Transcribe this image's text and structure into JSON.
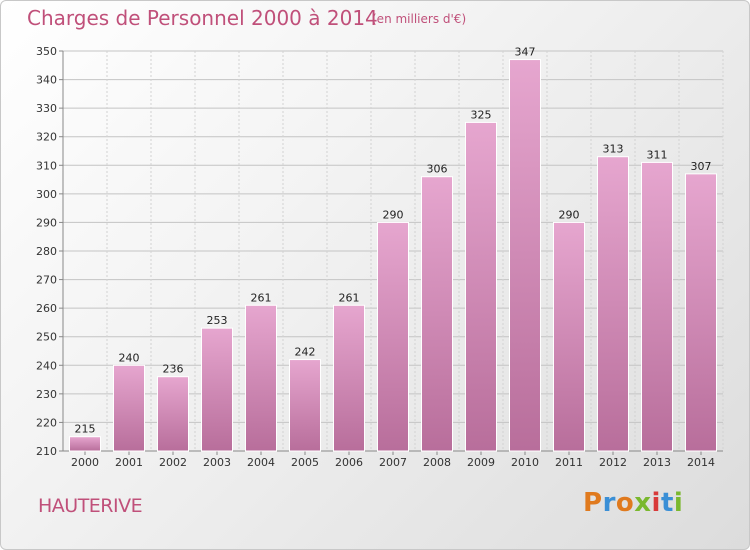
{
  "header": {
    "title": "Charges de Personnel 2000 à 2014",
    "subtitle": "(en milliers d'€)"
  },
  "footer": {
    "commune": "HAUTERIVE",
    "logo": "Proxiti",
    "logo_colors": [
      "#e07a1e",
      "#3a8fd6",
      "#e07a1e",
      "#7ab82e",
      "#d83a3a",
      "#3a8fd6",
      "#7ab82e"
    ]
  },
  "colors": {
    "bar_top": "#e6a6cf",
    "bar_bottom": "#b86e9b",
    "title": "#c0507a"
  },
  "chart_data": {
    "type": "bar",
    "title": "Charges de Personnel 2000 à 2014",
    "subtitle": "(en milliers d'€)",
    "categories": [
      "2000",
      "2001",
      "2002",
      "2003",
      "2004",
      "2005",
      "2006",
      "2007",
      "2008",
      "2009",
      "2010",
      "2011",
      "2012",
      "2013",
      "2014"
    ],
    "values": [
      215,
      240,
      236,
      253,
      261,
      242,
      261,
      290,
      306,
      325,
      347,
      290,
      313,
      311,
      307
    ],
    "ylim": [
      210,
      350
    ],
    "yticks": [
      210,
      220,
      230,
      240,
      250,
      260,
      270,
      280,
      290,
      300,
      310,
      320,
      330,
      340,
      350
    ],
    "grid": true,
    "xlabel": "",
    "ylabel": ""
  }
}
